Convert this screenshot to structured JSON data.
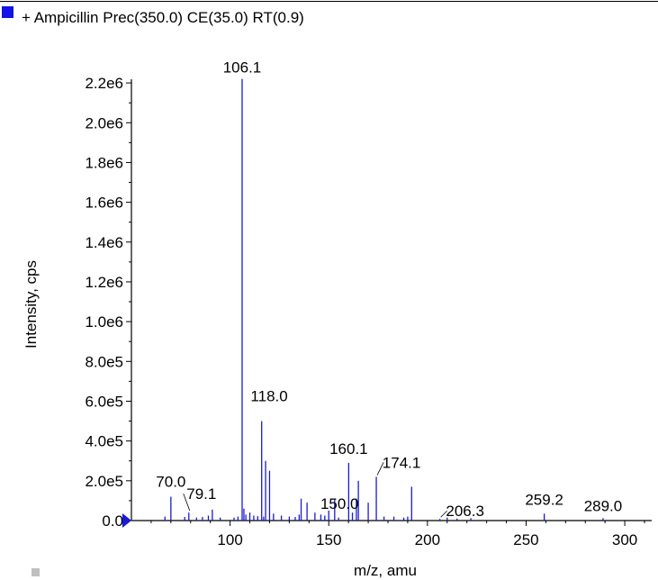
{
  "colors": {
    "series": "#1a1ad6",
    "legend_swatch": "#1414e6",
    "axis": "#000000",
    "marker": "#1a1ad6"
  },
  "legend": {
    "label": "+ Ampicillin Prec(350.0) CE(35.0) RT(0.9)"
  },
  "chart_data": {
    "type": "bar",
    "title": "",
    "xlabel": "m/z, amu",
    "ylabel": "Intensity, cps",
    "xlim": [
      50,
      310
    ],
    "ylim": [
      0,
      2300000
    ],
    "x_ticks": [
      100,
      150,
      200,
      250,
      300
    ],
    "y_ticks": [
      {
        "value": 0,
        "label": "0.0"
      },
      {
        "value": 200000,
        "label": "2.0e5"
      },
      {
        "value": 400000,
        "label": "4.0e5"
      },
      {
        "value": 600000,
        "label": "6.0e5"
      },
      {
        "value": 800000,
        "label": "8.0e5"
      },
      {
        "value": 1000000,
        "label": "1.0e6"
      },
      {
        "value": 1200000,
        "label": "1.2e6"
      },
      {
        "value": 1400000,
        "label": "1.4e6"
      },
      {
        "value": 1600000,
        "label": "1.6e6"
      },
      {
        "value": 1800000,
        "label": "1.8e6"
      },
      {
        "value": 2000000,
        "label": "2.0e6"
      },
      {
        "value": 2200000,
        "label": "2.2e6"
      }
    ],
    "x": [
      67.0,
      70.0,
      77.0,
      79.1,
      83.0,
      86.0,
      89.0,
      91.0,
      95.0,
      102.0,
      104.0,
      106.1,
      107.0,
      108.0,
      110.0,
      112.0,
      114.0,
      116.0,
      117.0,
      118.0,
      120.0,
      122.0,
      126.0,
      130.0,
      133.0,
      135.0,
      136.0,
      139.0,
      143.0,
      146.0,
      148.0,
      150.0,
      153.0,
      155.0,
      160.1,
      162.0,
      164.0,
      165.0,
      170.0,
      174.1,
      178.0,
      183.0,
      188.0,
      190.0,
      192.0,
      206.3,
      210.0,
      215.0,
      222.0,
      259.2,
      289.0
    ],
    "values": [
      20000,
      120000,
      18000,
      40000,
      15000,
      18000,
      25000,
      55000,
      15000,
      15000,
      20000,
      2220000,
      60000,
      30000,
      40000,
      25000,
      22000,
      500000,
      20000,
      300000,
      250000,
      35000,
      25000,
      20000,
      18000,
      30000,
      110000,
      90000,
      40000,
      30000,
      25000,
      50000,
      110000,
      15000,
      290000,
      40000,
      110000,
      200000,
      90000,
      220000,
      20000,
      20000,
      15000,
      20000,
      170000,
      8000,
      15000,
      10000,
      12000,
      35000,
      12000
    ],
    "peak_labels": [
      {
        "x": 106.1,
        "label": "106.1"
      },
      {
        "x": 70.0,
        "label": "70.0"
      },
      {
        "x": 79.1,
        "label": "79.1"
      },
      {
        "x": 118.0,
        "label": "118.0"
      },
      {
        "x": 150.0,
        "label": "150.0"
      },
      {
        "x": 160.1,
        "label": "160.1"
      },
      {
        "x": 174.1,
        "label": "174.1"
      },
      {
        "x": 206.3,
        "label": "206.3"
      },
      {
        "x": 259.2,
        "label": "259.2"
      },
      {
        "x": 289.0,
        "label": "289.0"
      }
    ],
    "grid": false
  }
}
